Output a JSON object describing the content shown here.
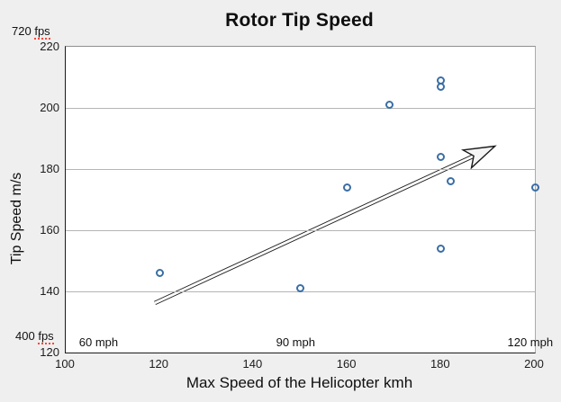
{
  "title": "Rotor Tip Speed",
  "annotations": {
    "top_left_value": "720",
    "top_left_unit": "fps",
    "bottom_left_value": "400",
    "bottom_left_unit": "fps",
    "inside_labels": [
      {
        "text": "60 mph",
        "x": 107
      },
      {
        "text": "90 mph",
        "x": 149
      },
      {
        "text": "120 mph",
        "x": 199
      }
    ]
  },
  "axes": {
    "x_label": "Max Speed of the Helicopter kmh",
    "y_label": "Tip Speed m/s"
  },
  "colors": {
    "background": "#efefef",
    "plot_background": "#ffffff",
    "gridline": "#b5b5b5",
    "axis": "#1a1a1a",
    "point_stroke": "#3A6EA5",
    "spellcheck_underline": "#ff4438",
    "arrow_fill": "#f4f4f4",
    "arrow_stroke": "#1a1a1a"
  },
  "chart_data": {
    "type": "scatter",
    "title": "Rotor Tip Speed",
    "xlabel": "Max Speed of the Helicopter kmh",
    "ylabel": "Tip Speed m/s",
    "x_range": [
      100,
      200
    ],
    "y_range": [
      120,
      220
    ],
    "x_ticks": [
      100,
      120,
      140,
      160,
      180,
      200
    ],
    "y_ticks": [
      220,
      200,
      180,
      160,
      140,
      120
    ],
    "gridlines_y": [
      200,
      180,
      160,
      140
    ],
    "grid": "horizontal-only",
    "legend": "none",
    "points": [
      {
        "x": 120,
        "y": 146
      },
      {
        "x": 150,
        "y": 141
      },
      {
        "x": 160,
        "y": 174
      },
      {
        "x": 169,
        "y": 201
      },
      {
        "x": 180,
        "y": 209
      },
      {
        "x": 180,
        "y": 207
      },
      {
        "x": 180,
        "y": 184
      },
      {
        "x": 182,
        "y": 176
      },
      {
        "x": 180,
        "y": 154
      },
      {
        "x": 200,
        "y": 174
      }
    ],
    "trend_arrow": {
      "x1": 119,
      "y1": 136.2,
      "x2": 191.5,
      "y2": 187.5
    }
  }
}
